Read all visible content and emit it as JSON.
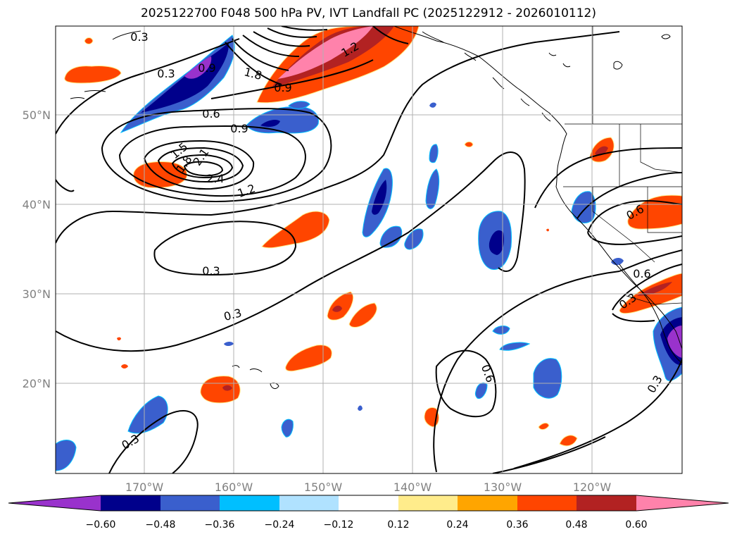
{
  "title": "2025122700 F048 500 hPa PV, IVT Landfall PC (2025122912 - 2026010112)",
  "axes": {
    "lat_labels": [
      "50°N",
      "40°N",
      "30°N",
      "20°N"
    ],
    "lon_labels": [
      "170°W",
      "160°W",
      "150°W",
      "140°W",
      "130°W",
      "120°W"
    ]
  },
  "contour_labels": [
    "0.3",
    "0.3",
    "0.9",
    "1.8",
    "0.9",
    "1.2",
    "0.6",
    "0.9",
    "1.5",
    "1.8",
    "2.1",
    "2.4",
    "1.2",
    "0.3",
    "0.3",
    "0.6",
    "0.6",
    "0.6",
    "0.3",
    "0.3",
    "0.3"
  ],
  "colorbar": {
    "ticks": [
      "−0.60",
      "−0.48",
      "−0.36",
      "−0.24",
      "−0.12",
      "0.12",
      "0.24",
      "0.36",
      "0.48",
      "0.60"
    ],
    "colors": [
      "#9932cc",
      "#00008b",
      "#3a5fcd",
      "#00bfff",
      "#b0e2ff",
      "#ffffff",
      "#ffec8b",
      "#ffa500",
      "#ff4500",
      "#b22222",
      "#ff82ab"
    ]
  }
}
